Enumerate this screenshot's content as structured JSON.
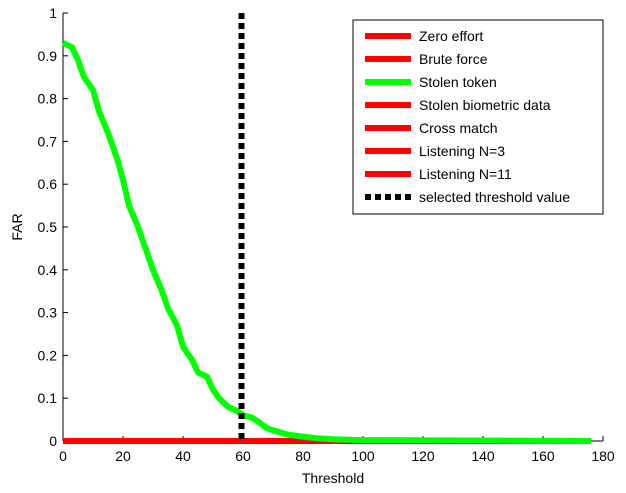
{
  "chart_data": {
    "type": "line",
    "title": "",
    "xlabel": "Threshold",
    "ylabel": "FAR",
    "xlim": [
      0,
      180
    ],
    "ylim": [
      0,
      1
    ],
    "xticks": [
      "0",
      "20",
      "40",
      "60",
      "80",
      "100",
      "120",
      "140",
      "160",
      "180"
    ],
    "yticks": [
      "0",
      "0.1",
      "0.2",
      "0.3",
      "0.4",
      "0.5",
      "0.6",
      "0.7",
      "0.8",
      "0.9",
      "1"
    ],
    "grid": false,
    "legend_position": "top-right",
    "x": [
      0,
      3,
      5,
      7,
      10,
      12,
      15,
      18,
      20,
      22,
      25,
      28,
      30,
      33,
      35,
      38,
      40,
      43,
      45,
      48,
      50,
      52,
      55,
      58,
      60,
      63,
      65,
      68,
      70,
      75,
      80,
      85,
      90,
      95,
      100,
      176
    ],
    "series": [
      {
        "name": "Zero effort",
        "color": "#ff0000",
        "line": "solid",
        "values": [
          0,
          0,
          0,
          0,
          0,
          0,
          0,
          0,
          0,
          0,
          0,
          0,
          0,
          0,
          0,
          0,
          0,
          0,
          0,
          0,
          0,
          0,
          0,
          0,
          0,
          0,
          0,
          0,
          0,
          0,
          0,
          0,
          0,
          0,
          0,
          0
        ]
      },
      {
        "name": "Brute force",
        "color": "#ff0000",
        "line": "solid",
        "values": [
          0,
          0,
          0,
          0,
          0,
          0,
          0,
          0,
          0,
          0,
          0,
          0,
          0,
          0,
          0,
          0,
          0,
          0,
          0,
          0,
          0,
          0,
          0,
          0,
          0,
          0,
          0,
          0,
          0,
          0,
          0,
          0,
          0,
          0,
          0,
          0
        ]
      },
      {
        "name": "Stolen token",
        "color": "#00ff00",
        "line": "solid",
        "values": [
          0.93,
          0.92,
          0.89,
          0.85,
          0.82,
          0.77,
          0.72,
          0.66,
          0.61,
          0.55,
          0.5,
          0.44,
          0.4,
          0.35,
          0.31,
          0.27,
          0.22,
          0.19,
          0.16,
          0.15,
          0.12,
          0.1,
          0.08,
          0.07,
          0.06,
          0.055,
          0.045,
          0.03,
          0.025,
          0.015,
          0.01,
          0.006,
          0.004,
          0.003,
          0.002,
          0
        ]
      },
      {
        "name": "Stolen biometric data",
        "color": "#ff0000",
        "line": "solid",
        "values": [
          0,
          0,
          0,
          0,
          0,
          0,
          0,
          0,
          0,
          0,
          0,
          0,
          0,
          0,
          0,
          0,
          0,
          0,
          0,
          0,
          0,
          0,
          0,
          0,
          0,
          0,
          0,
          0,
          0,
          0,
          0,
          0,
          0,
          0,
          0,
          0
        ]
      },
      {
        "name": "Cross match",
        "color": "#ff0000",
        "line": "solid",
        "values": [
          0,
          0,
          0,
          0,
          0,
          0,
          0,
          0,
          0,
          0,
          0,
          0,
          0,
          0,
          0,
          0,
          0,
          0,
          0,
          0,
          0,
          0,
          0,
          0,
          0,
          0,
          0,
          0,
          0,
          0,
          0,
          0,
          0,
          0,
          0,
          0
        ]
      },
      {
        "name": "Listening N=3",
        "color": "#ff0000",
        "line": "solid",
        "values": [
          0,
          0,
          0,
          0,
          0,
          0,
          0,
          0,
          0,
          0,
          0,
          0,
          0,
          0,
          0,
          0,
          0,
          0,
          0,
          0,
          0,
          0,
          0,
          0,
          0,
          0,
          0,
          0,
          0,
          0,
          0,
          0,
          0,
          0,
          0,
          0
        ]
      },
      {
        "name": "Listening N=11",
        "color": "#ff0000",
        "line": "solid",
        "values": [
          0,
          0,
          0,
          0,
          0,
          0,
          0,
          0,
          0,
          0,
          0,
          0,
          0,
          0,
          0,
          0,
          0,
          0,
          0,
          0,
          0,
          0,
          0,
          0,
          0,
          0,
          0,
          0,
          0,
          0,
          0,
          0,
          0,
          0,
          0,
          0
        ]
      }
    ],
    "threshold": {
      "name": "selected threshold value",
      "x": 59.5,
      "y_range": [
        0,
        1
      ],
      "color": "#000000",
      "line": "dotted"
    }
  }
}
